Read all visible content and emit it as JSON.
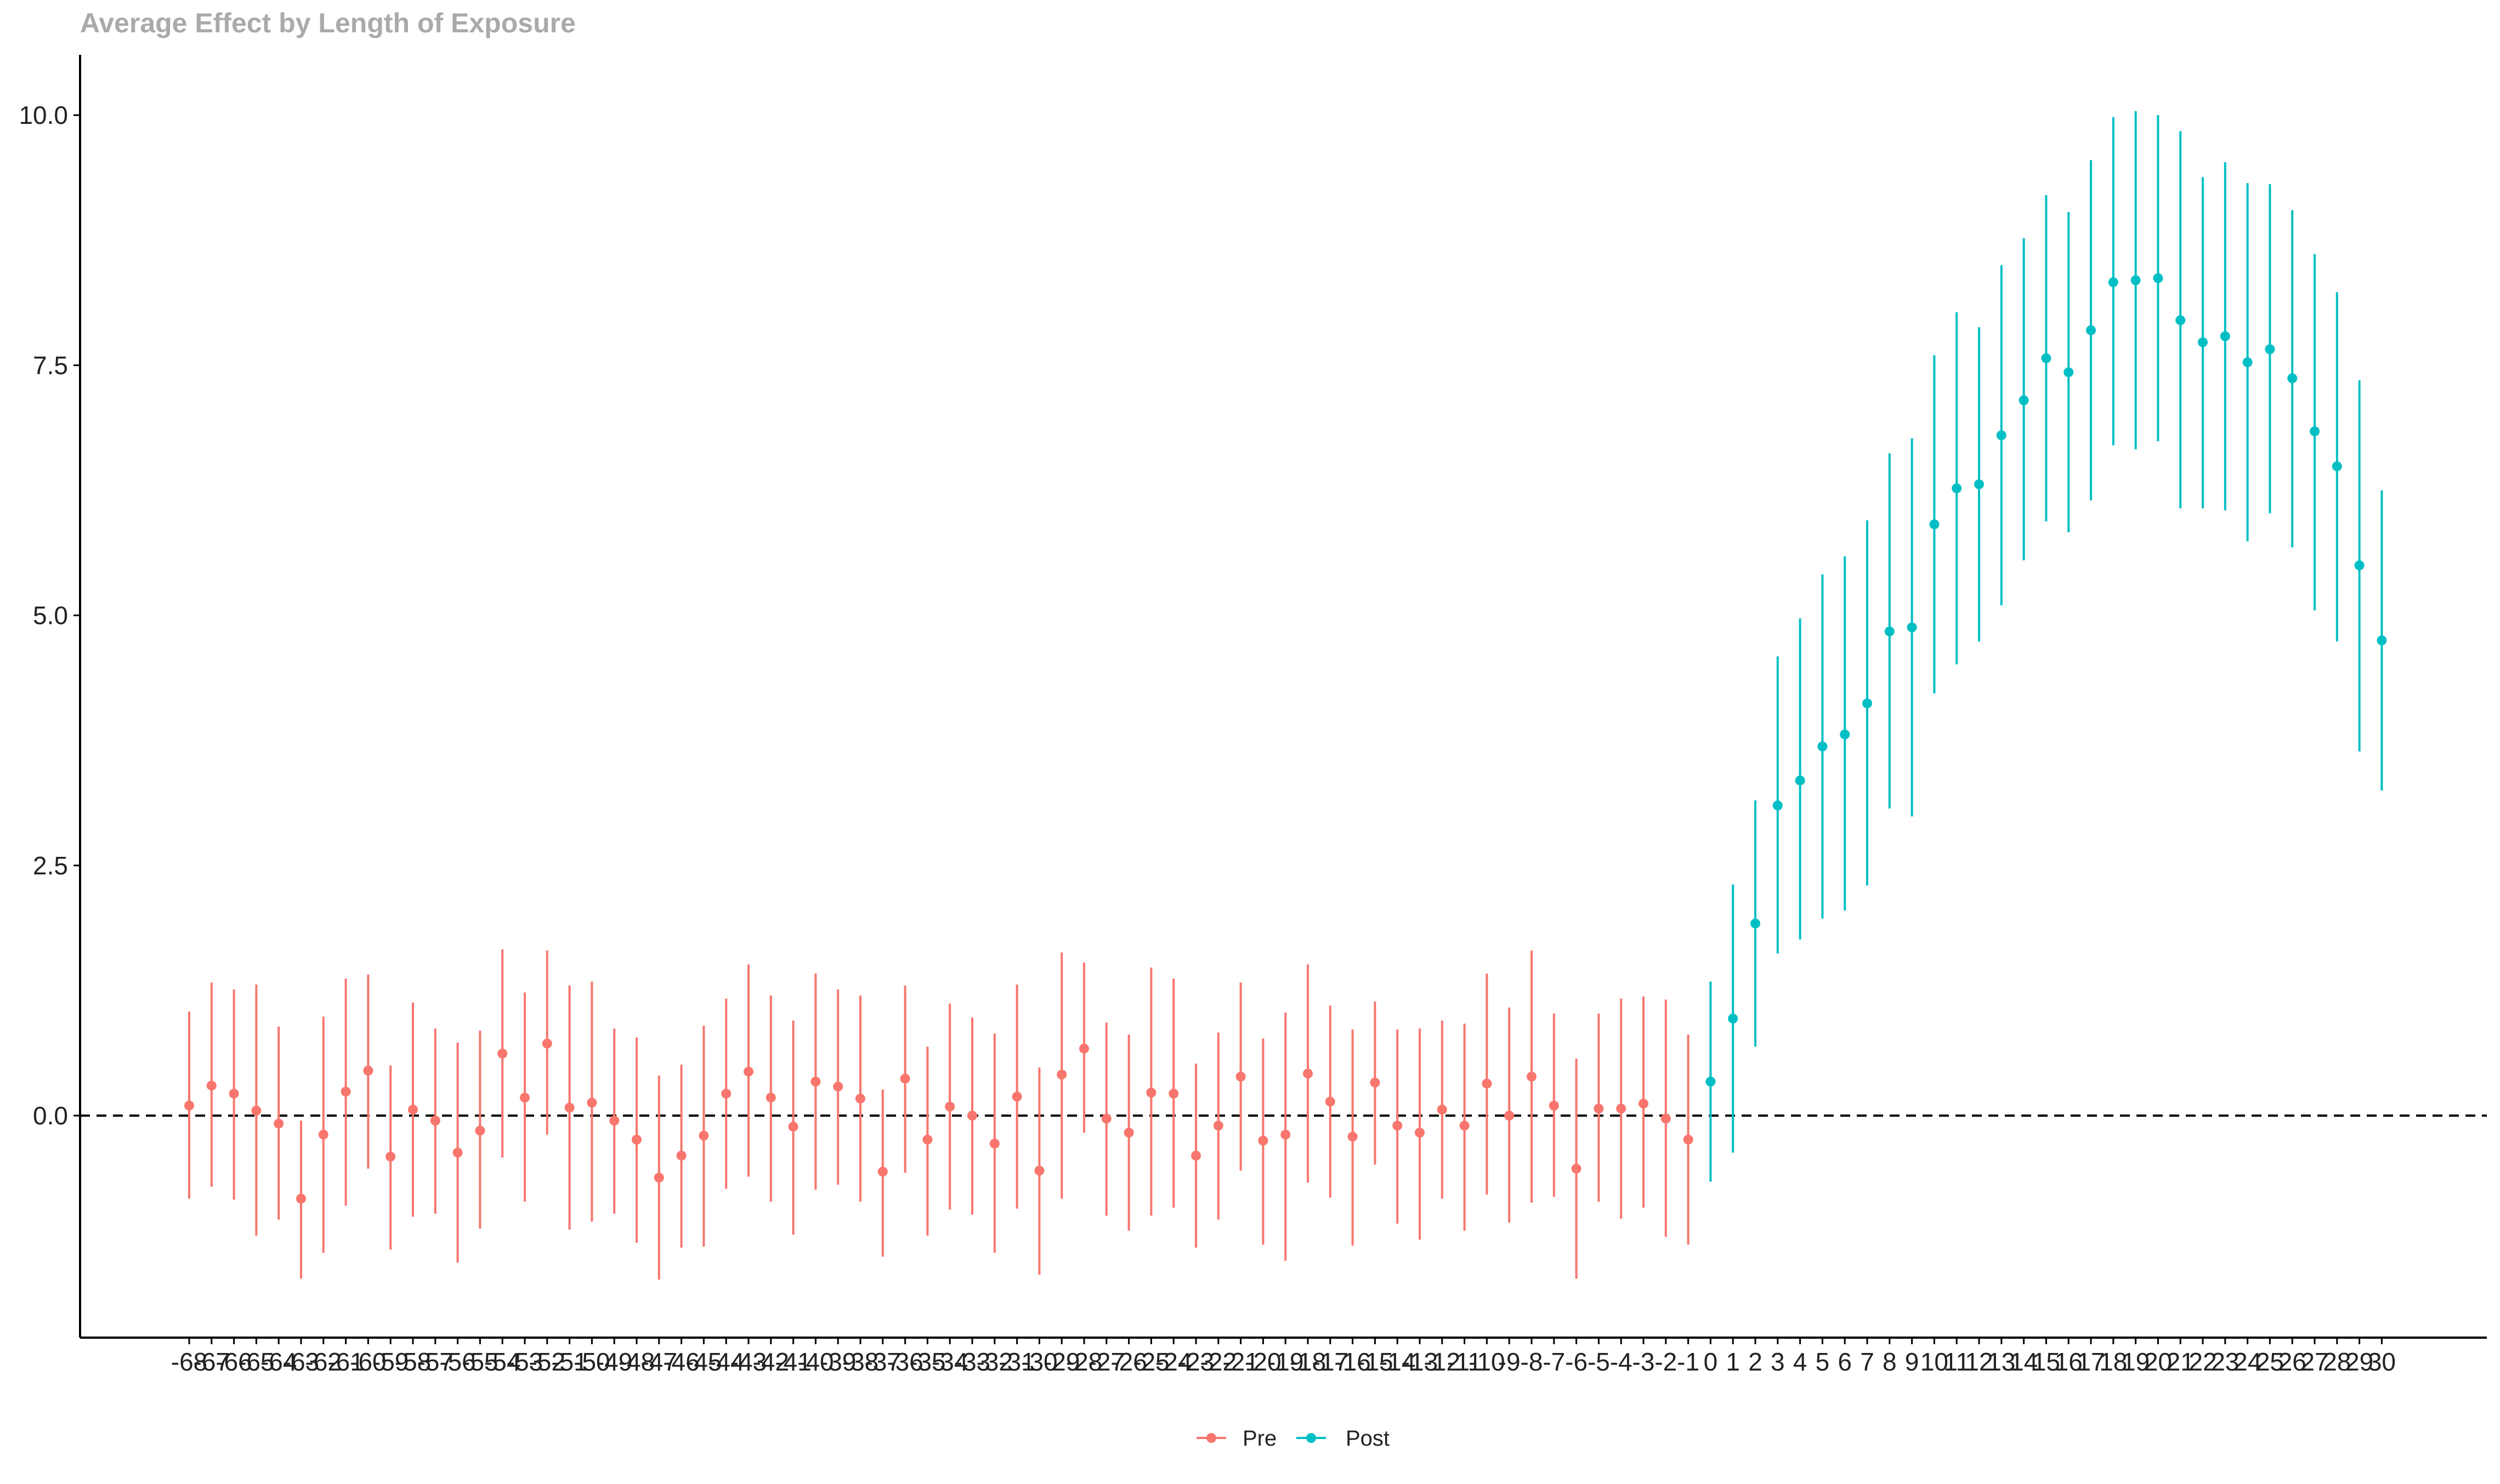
{
  "chart_data": {
    "type": "errorbar",
    "title": "Average Effect by Length of Exposure",
    "xlabel": "",
    "ylabel": "",
    "ylim": [
      -2.2,
      10.6
    ],
    "y_ticks": [
      "0.0",
      "2.5",
      "5.0",
      "7.5",
      "10.0"
    ],
    "reference_line": {
      "y": 0,
      "style": "dashed"
    },
    "grid": false,
    "legend": {
      "position": "bottom",
      "entries": [
        "Pre",
        "Post"
      ]
    },
    "colors": {
      "Pre": "#F8766D",
      "Post": "#00BFC4"
    },
    "series": [
      {
        "name": "Pre",
        "x": [
          -68,
          -67,
          -66,
          -65,
          -64,
          -63,
          -62,
          -61,
          -60,
          -59,
          -58,
          -57,
          -56,
          -55,
          -54,
          -53,
          -52,
          -51,
          -50,
          -49,
          -48,
          -47,
          -46,
          -45,
          -44,
          -43,
          -42,
          -41,
          -40,
          -39,
          -38,
          -37,
          -36,
          -35,
          -34,
          -33,
          -32,
          -31,
          -30,
          -29,
          -28,
          -27,
          -26,
          -25,
          -24,
          -23,
          -22,
          -21,
          -20,
          -19,
          -18,
          -17,
          -16,
          -15,
          -14,
          -13,
          -12,
          -11,
          -10,
          -9,
          -8,
          -7,
          -6,
          -5,
          -4,
          -3,
          -2,
          -1
        ],
        "estimate": [
          0.1,
          0.3,
          0.22,
          0.05,
          -0.08,
          -0.83,
          -0.19,
          0.24,
          0.45,
          -0.41,
          0.06,
          -0.05,
          -0.37,
          -0.15,
          0.62,
          0.18,
          0.72,
          0.08,
          0.13,
          -0.05,
          -0.24,
          -0.62,
          -0.4,
          -0.2,
          0.22,
          0.44,
          0.18,
          -0.11,
          0.34,
          0.29,
          0.17,
          -0.56,
          0.37,
          -0.24,
          0.09,
          0.0,
          -0.28,
          0.19,
          -0.55,
          0.41,
          0.67,
          -0.03,
          -0.17,
          0.23,
          0.22,
          -0.4,
          -0.1,
          0.39,
          -0.25,
          -0.19,
          0.42,
          0.14,
          -0.21,
          0.33,
          -0.1,
          -0.17,
          0.06,
          -0.1,
          0.32,
          0.0,
          0.39,
          0.1,
          -0.53,
          0.07,
          0.07,
          0.12,
          -0.03,
          -0.24
        ],
        "ci_low": [
          -0.83,
          -0.71,
          -0.84,
          -1.2,
          -1.04,
          -1.63,
          -1.37,
          -0.9,
          -0.53,
          -1.34,
          -1.01,
          -0.98,
          -1.47,
          -1.13,
          -0.42,
          -0.86,
          -0.19,
          -1.14,
          -1.06,
          -0.98,
          -1.27,
          -1.64,
          -1.32,
          -1.31,
          -0.73,
          -0.61,
          -0.86,
          -1.19,
          -0.74,
          -0.69,
          -0.86,
          -1.41,
          -0.57,
          -1.2,
          -0.94,
          -0.99,
          -1.37,
          -0.93,
          -1.59,
          -0.83,
          -0.17,
          -1.0,
          -1.15,
          -1.0,
          -0.92,
          -1.32,
          -1.04,
          -0.55,
          -1.29,
          -1.45,
          -0.67,
          -0.82,
          -1.3,
          -0.49,
          -1.08,
          -1.24,
          -0.83,
          -1.15,
          -0.79,
          -1.07,
          -0.87,
          -0.81,
          -1.63,
          -0.86,
          -1.03,
          -0.92,
          -1.21,
          -1.29
        ],
        "ci_high": [
          1.04,
          1.33,
          1.26,
          1.31,
          0.89,
          -0.05,
          0.99,
          1.37,
          1.41,
          0.5,
          1.13,
          0.87,
          0.73,
          0.85,
          1.66,
          1.23,
          1.65,
          1.3,
          1.34,
          0.87,
          0.78,
          0.4,
          0.51,
          0.9,
          1.17,
          1.51,
          1.2,
          0.95,
          1.42,
          1.26,
          1.2,
          0.26,
          1.3,
          0.69,
          1.12,
          0.98,
          0.82,
          1.31,
          0.48,
          1.63,
          1.53,
          0.93,
          0.81,
          1.48,
          1.37,
          0.52,
          0.83,
          1.33,
          0.77,
          1.03,
          1.51,
          1.1,
          0.86,
          1.14,
          0.86,
          0.87,
          0.95,
          0.92,
          1.42,
          1.08,
          1.65,
          1.02,
          0.57,
          1.02,
          1.17,
          1.19,
          1.16,
          0.81
        ]
      },
      {
        "name": "Post",
        "x": [
          0,
          1,
          2,
          3,
          4,
          5,
          6,
          7,
          8,
          9,
          10,
          11,
          12,
          13,
          14,
          15,
          16,
          17,
          18,
          19,
          20,
          21,
          22,
          23,
          24,
          25,
          26,
          27,
          28,
          29,
          30
        ],
        "estimate": [
          0.34,
          0.97,
          1.92,
          3.1,
          3.35,
          3.69,
          3.81,
          4.12,
          4.84,
          4.88,
          5.91,
          6.27,
          6.31,
          6.8,
          7.15,
          7.57,
          7.43,
          7.85,
          8.33,
          8.35,
          8.37,
          7.95,
          7.73,
          7.79,
          7.53,
          7.66,
          7.37,
          6.84,
          6.49,
          5.5,
          4.75
        ],
        "ci_low": [
          -0.66,
          -0.37,
          0.69,
          1.62,
          1.76,
          1.97,
          2.05,
          2.3,
          3.07,
          2.99,
          4.22,
          4.51,
          4.74,
          5.1,
          5.55,
          5.94,
          5.83,
          6.15,
          6.7,
          6.66,
          6.74,
          6.07,
          6.07,
          6.05,
          5.74,
          6.02,
          5.68,
          5.05,
          4.74,
          3.64,
          3.25
        ],
        "ci_high": [
          1.34,
          2.31,
          3.15,
          4.59,
          4.97,
          5.41,
          5.59,
          5.95,
          6.62,
          6.77,
          7.6,
          8.03,
          7.88,
          8.5,
          8.77,
          9.2,
          9.03,
          9.55,
          9.98,
          10.04,
          10.0,
          9.84,
          9.38,
          9.53,
          9.32,
          9.31,
          9.05,
          8.61,
          8.23,
          7.35,
          6.25
        ]
      }
    ]
  }
}
